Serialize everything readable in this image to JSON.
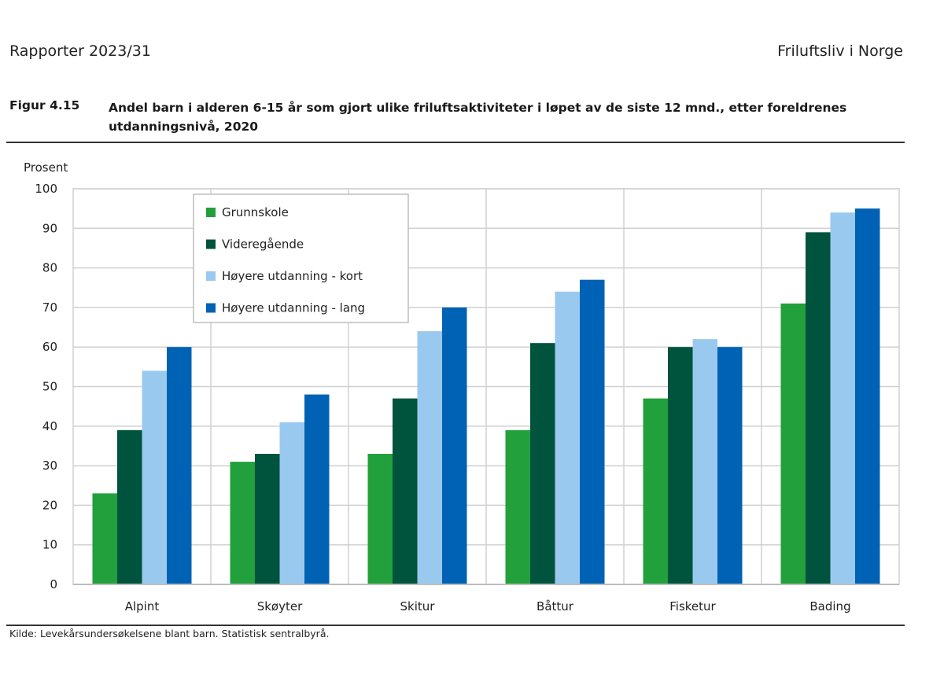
{
  "header": {
    "left": "Rapporter 2023/31",
    "right": "Friluftsliv i Norge"
  },
  "figure": {
    "label": "Figur 4.15",
    "title": "Andel barn i alderen 6-15 år som gjort ulike friluftsaktiviteter i løpet av de siste 12 mnd., etter foreldrenes utdanningsnivå, 2020"
  },
  "source": "Kilde: Levekårsundersøkelsene blant barn. Statistisk sentralbyrå.",
  "chart_data": {
    "type": "bar",
    "title": "Andel barn i alderen 6-15 år som gjort ulike friluftsaktiviteter i løpet av de siste 12 mnd., etter foreldrenes utdanningsnivå, 2020",
    "ylabel": "Prosent",
    "xlabel": "",
    "ylim": [
      0,
      100
    ],
    "yticks": [
      0,
      10,
      20,
      30,
      40,
      50,
      60,
      70,
      80,
      90,
      100
    ],
    "grid": true,
    "legend_position": "top-left",
    "categories": [
      "Alpint",
      "Skøyter",
      "Skitur",
      "Båttur",
      "Fisketur",
      "Bading"
    ],
    "series": [
      {
        "name": "Grunnskole",
        "color": "#22a03c",
        "values": [
          23,
          31,
          33,
          39,
          47,
          71
        ]
      },
      {
        "name": "Videregående",
        "color": "#00533c",
        "values": [
          39,
          33,
          47,
          61,
          60,
          89
        ]
      },
      {
        "name": "Høyere utdanning - kort",
        "color": "#9ac9ef",
        "values": [
          54,
          41,
          64,
          74,
          62,
          94
        ]
      },
      {
        "name": "Høyere utdanning - lang",
        "color": "#0062b4",
        "values": [
          60,
          48,
          70,
          77,
          60,
          95
        ]
      }
    ]
  }
}
